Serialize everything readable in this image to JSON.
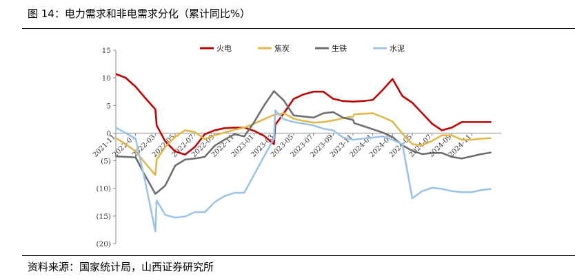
{
  "header": {
    "title": "图 14：电力需求和非电需求分化（累计同比%）",
    "source": "资料来源：国家统计局，山西证券研究所"
  },
  "chart_data": {
    "type": "line",
    "title": "",
    "xlabel": "",
    "ylabel": "",
    "ylim": [
      -20,
      15
    ],
    "yticks": [
      15,
      10,
      5,
      0,
      -5,
      -10,
      -15,
      -20
    ],
    "ytick_labels": [
      "15",
      "10",
      "5",
      "0",
      "(5)",
      "(10)",
      "(15)",
      "(20)"
    ],
    "xlim": [
      "2021-11",
      "2025-02"
    ],
    "xtick_labels": [
      "2021-11",
      "2022-01",
      "2022-03",
      "2022-05",
      "2022-07",
      "2022-09",
      "2022-11",
      "2023-01",
      "2023-03",
      "2023-05",
      "2023-07",
      "2023-09",
      "2023-11",
      "2024-01",
      "2024-03",
      "2024-05",
      "2024-07",
      "2024-09",
      "2024-11"
    ],
    "legend_position": "top",
    "grid": false,
    "series": [
      {
        "name": "火电",
        "color": "#c00000",
        "points": [
          [
            "2021-11",
            10.7
          ],
          [
            "2021-12",
            10.0
          ],
          [
            "2022-01",
            8.4
          ],
          [
            "2022-02",
            6.3
          ],
          [
            "2022-03",
            4.3
          ],
          [
            "2022-03-05",
            1.4
          ],
          [
            "2022-04",
            -1.5
          ],
          [
            "2022-05",
            -3.3
          ],
          [
            "2022-06",
            -3.9
          ],
          [
            "2022-07",
            -2.5
          ],
          [
            "2022-08",
            -0.2
          ],
          [
            "2022-09",
            0.5
          ],
          [
            "2022-10",
            0.9
          ],
          [
            "2022-11",
            1.0
          ],
          [
            "2022-12",
            1.0
          ],
          [
            "2023-01",
            0.4
          ],
          [
            "2023-02",
            -0.5
          ],
          [
            "2023-03",
            -2.0
          ],
          [
            "2023-03-05",
            1.5
          ],
          [
            "2023-04",
            3.6
          ],
          [
            "2023-05",
            6.2
          ],
          [
            "2023-06",
            7.0
          ],
          [
            "2023-07",
            7.5
          ],
          [
            "2023-08",
            7.5
          ],
          [
            "2023-09",
            6.2
          ],
          [
            "2023-10",
            5.8
          ],
          [
            "2023-11",
            5.7
          ],
          [
            "2023-12",
            5.8
          ],
          [
            "2024-01",
            6.0
          ],
          [
            "2024-02",
            7.8
          ],
          [
            "2024-03",
            9.8
          ],
          [
            "2024-04",
            6.7
          ],
          [
            "2024-05",
            5.5
          ],
          [
            "2024-06",
            3.6
          ],
          [
            "2024-07",
            1.7
          ],
          [
            "2024-08",
            0.5
          ],
          [
            "2024-09",
            1.0
          ],
          [
            "2024-10",
            2.0
          ],
          [
            "2024-11",
            2.0
          ],
          [
            "2024-12",
            2.0
          ],
          [
            "2025-01",
            2.0
          ]
        ]
      },
      {
        "name": "焦炭",
        "color": "#e0b84a",
        "points": [
          [
            "2021-11",
            -0.9
          ],
          [
            "2021-12",
            -2.0
          ],
          [
            "2022-01",
            -3.3
          ],
          [
            "2022-02",
            -5.5
          ],
          [
            "2022-03",
            -7.6
          ],
          [
            "2022-03-05",
            -4.8
          ],
          [
            "2022-04",
            -2.5
          ],
          [
            "2022-05",
            -0.7
          ],
          [
            "2022-06",
            0.5
          ],
          [
            "2022-07",
            0.2
          ],
          [
            "2022-08",
            -1.1
          ],
          [
            "2022-09",
            -0.4
          ],
          [
            "2022-10",
            0.1
          ],
          [
            "2022-11",
            0.6
          ],
          [
            "2022-12",
            1.0
          ],
          [
            "2023-01",
            1.7
          ],
          [
            "2023-02",
            2.5
          ],
          [
            "2023-03",
            3.3
          ],
          [
            "2023-04",
            3.6
          ],
          [
            "2023-05",
            2.6
          ],
          [
            "2023-06",
            2.2
          ],
          [
            "2023-07",
            1.9
          ],
          [
            "2023-08",
            2.0
          ],
          [
            "2023-09",
            2.3
          ],
          [
            "2023-10",
            2.7
          ],
          [
            "2023-11",
            3.0
          ],
          [
            "2023-11-05",
            3.4
          ],
          [
            "2023-12",
            3.5
          ],
          [
            "2024-01",
            3.6
          ],
          [
            "2024-02",
            2.9
          ],
          [
            "2024-03",
            2.1
          ],
          [
            "2024-04",
            -0.1
          ],
          [
            "2024-05",
            -2.0
          ],
          [
            "2024-06",
            -2.2
          ],
          [
            "2024-07",
            -1.4
          ],
          [
            "2024-08",
            -0.4
          ],
          [
            "2024-09",
            -0.4
          ],
          [
            "2024-10",
            -1.2
          ],
          [
            "2024-11",
            -1.2
          ],
          [
            "2024-12",
            -1.0
          ],
          [
            "2025-01",
            -0.9
          ]
        ]
      },
      {
        "name": "生铁",
        "color": "#6e6e6e",
        "points": [
          [
            "2021-11",
            -4.2
          ],
          [
            "2021-12",
            -4.3
          ],
          [
            "2022-01",
            -4.4
          ],
          [
            "2022-02",
            -7.8
          ],
          [
            "2022-03",
            -11.0
          ],
          [
            "2022-04",
            -9.5
          ],
          [
            "2022-05",
            -5.9
          ],
          [
            "2022-06",
            -4.8
          ],
          [
            "2022-07",
            -4.6
          ],
          [
            "2022-08",
            -4.3
          ],
          [
            "2022-09",
            -2.3
          ],
          [
            "2022-10",
            -1.2
          ],
          [
            "2022-11",
            -0.2
          ],
          [
            "2022-12",
            -0.6
          ],
          [
            "2023-01",
            2.0
          ],
          [
            "2023-02",
            5.0
          ],
          [
            "2023-03",
            7.6
          ],
          [
            "2023-04",
            5.9
          ],
          [
            "2023-05",
            3.2
          ],
          [
            "2023-06",
            3.0
          ],
          [
            "2023-07",
            2.8
          ],
          [
            "2023-08",
            3.6
          ],
          [
            "2023-09",
            3.8
          ],
          [
            "2023-10",
            2.8
          ],
          [
            "2023-11",
            2.4
          ],
          [
            "2023-11-05",
            1.8
          ],
          [
            "2023-12",
            1.3
          ],
          [
            "2024-01",
            0.7
          ],
          [
            "2024-02",
            0.1
          ],
          [
            "2024-03",
            -0.7
          ],
          [
            "2024-04",
            -2.2
          ],
          [
            "2024-05",
            -3.2
          ],
          [
            "2024-06",
            -3.8
          ],
          [
            "2024-07",
            -3.6
          ],
          [
            "2024-08",
            -3.6
          ],
          [
            "2024-09",
            -4.3
          ],
          [
            "2024-10",
            -4.6
          ],
          [
            "2024-11",
            -4.2
          ],
          [
            "2024-12",
            -3.8
          ],
          [
            "2025-01",
            -3.5
          ]
        ]
      },
      {
        "name": "水泥",
        "color": "#9dc3e6",
        "points": [
          [
            "2021-11",
            1.0
          ],
          [
            "2021-12",
            0.0
          ],
          [
            "2022-01",
            -1.0
          ],
          [
            "2022-02",
            -9.0
          ],
          [
            "2022-03",
            -17.8
          ],
          [
            "2022-03-05",
            -12.2
          ],
          [
            "2022-04",
            -14.8
          ],
          [
            "2022-05",
            -15.3
          ],
          [
            "2022-06",
            -15.1
          ],
          [
            "2022-07",
            -14.3
          ],
          [
            "2022-08",
            -14.3
          ],
          [
            "2022-09",
            -12.5
          ],
          [
            "2022-10",
            -11.4
          ],
          [
            "2022-11",
            -10.8
          ],
          [
            "2022-12",
            -10.8
          ],
          [
            "2023-01",
            -7.5
          ],
          [
            "2023-02",
            -4.2
          ],
          [
            "2023-03",
            -1.0
          ],
          [
            "2023-03-05",
            4.1
          ],
          [
            "2023-04",
            2.5
          ],
          [
            "2023-05",
            2.0
          ],
          [
            "2023-06",
            1.7
          ],
          [
            "2023-07",
            1.4
          ],
          [
            "2023-08",
            0.8
          ],
          [
            "2023-09",
            0.5
          ],
          [
            "2023-10",
            -0.8
          ],
          [
            "2023-11",
            -1.2
          ],
          [
            "2023-12",
            -1.0
          ],
          [
            "2024-01",
            -0.8
          ],
          [
            "2024-02",
            -0.6
          ],
          [
            "2024-03",
            -1.2
          ],
          [
            "2024-04",
            -2.0
          ],
          [
            "2024-05",
            -11.8
          ],
          [
            "2024-06",
            -10.5
          ],
          [
            "2024-07",
            -9.9
          ],
          [
            "2024-08",
            -10.1
          ],
          [
            "2024-09",
            -10.5
          ],
          [
            "2024-10",
            -10.7
          ],
          [
            "2024-11",
            -10.7
          ],
          [
            "2024-12",
            -10.3
          ],
          [
            "2025-01",
            -10.1
          ]
        ]
      }
    ]
  }
}
